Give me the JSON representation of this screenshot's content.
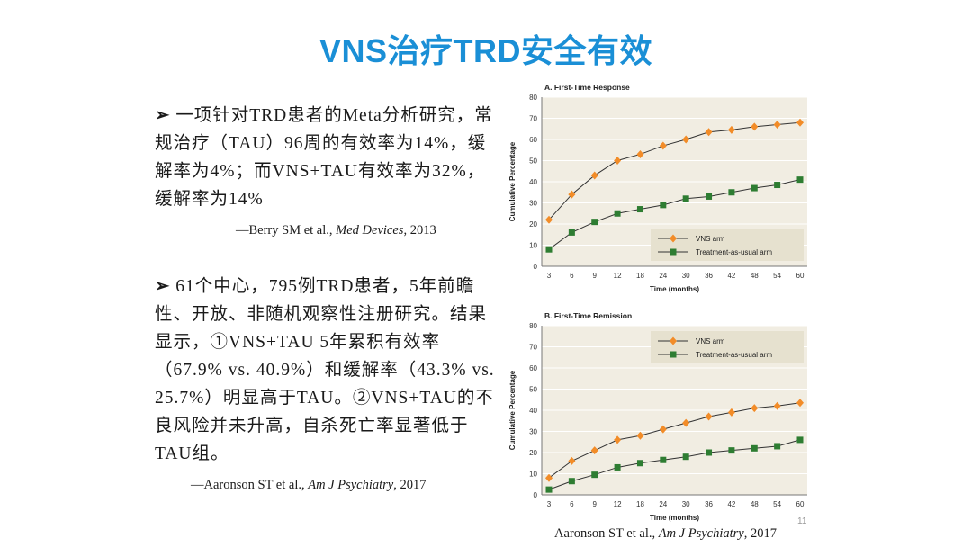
{
  "slide": {
    "title": "VNS治疗TRD安全有效",
    "page_number": "11",
    "point1": {
      "marker": "➢",
      "text": "一项针对TRD患者的Meta分析研究，常规治疗（TAU）96周的有效率为14%，缓解率为4%；而VNS+TAU有效率为32%，缓解率为14%",
      "cite_prefix": "—Berry SM et al., ",
      "cite_journal": "Med Devices",
      "cite_suffix": ", 2013"
    },
    "point2": {
      "marker": "➢",
      "text": "61个中心，795例TRD患者，5年前瞻性、开放、非随机观察性注册研究。结果显示，①VNS+TAU 5年累积有效率（67.9% vs. 40.9%）和缓解率（43.3% vs. 25.7%）明显高于TAU。②VNS+TAU的不良风险并未升高，自杀死亡率显著低于TAU组。",
      "cite_prefix": "—Aaronson ST  et al., ",
      "cite_journal": "Am J Psychiatry",
      "cite_suffix": ", 2017"
    },
    "chart_citation_prefix": "Aaronson ST  et al., ",
    "chart_citation_journal": "Am J Psychiatry",
    "chart_citation_suffix": ", 2017"
  },
  "chart_data": [
    {
      "type": "line",
      "title": "A. First-Time Response",
      "xlabel": "Time (months)",
      "ylabel": "Cumulative Percentage",
      "x": [
        3,
        6,
        9,
        12,
        18,
        24,
        30,
        36,
        42,
        48,
        54,
        60
      ],
      "ylim": [
        0,
        80
      ],
      "yticks": [
        0,
        10,
        20,
        30,
        40,
        50,
        60,
        70,
        80
      ],
      "legend_position": "bottom-right",
      "series": [
        {
          "name": "VNS arm",
          "color": "#f28c28",
          "marker": "diamond",
          "values": [
            22,
            34,
            43,
            50,
            53,
            57,
            60,
            63.5,
            64.5,
            66,
            67,
            68
          ]
        },
        {
          "name": "Treatment-as-usual arm",
          "color": "#2e7d32",
          "marker": "square",
          "values": [
            8,
            16,
            21,
            25,
            27,
            29,
            32,
            33,
            35,
            37,
            38.5,
            41
          ]
        }
      ]
    },
    {
      "type": "line",
      "title": "B. First-Time Remission",
      "xlabel": "Time (months)",
      "ylabel": "Cumulative Percentage",
      "x": [
        3,
        6,
        9,
        12,
        18,
        24,
        30,
        36,
        42,
        48,
        54,
        60
      ],
      "ylim": [
        0,
        80
      ],
      "yticks": [
        0,
        10,
        20,
        30,
        40,
        50,
        60,
        70,
        80
      ],
      "legend_position": "top-right",
      "series": [
        {
          "name": "VNS arm",
          "color": "#f28c28",
          "marker": "diamond",
          "values": [
            8,
            16,
            21,
            26,
            28,
            31,
            34,
            37,
            39,
            41,
            42,
            43.5
          ]
        },
        {
          "name": "Treatment-as-usual arm",
          "color": "#2e7d32",
          "marker": "square",
          "values": [
            2.5,
            6.5,
            9.5,
            13,
            15,
            16.5,
            18,
            20,
            21,
            22,
            23,
            26
          ]
        }
      ]
    }
  ]
}
